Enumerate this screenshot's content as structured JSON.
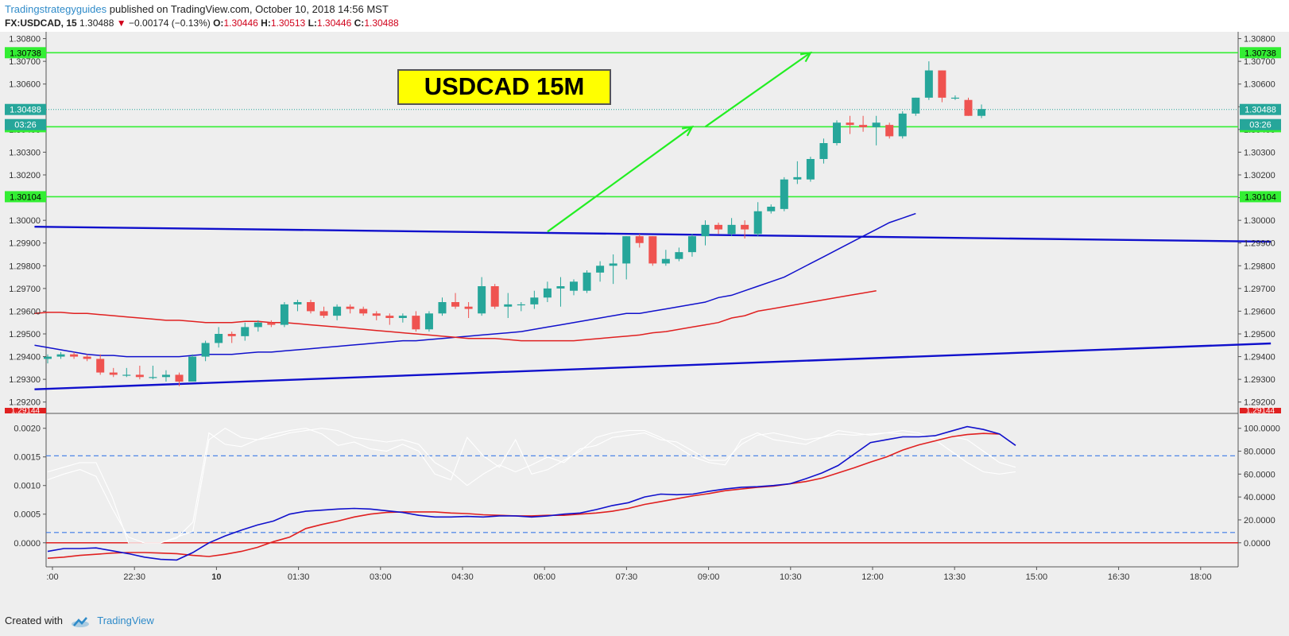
{
  "header": {
    "author": "Tradingstrategyguides",
    "published_text": "published on TradingView.com, October 10, 2018 14:56 MST",
    "symbol": "FX:USDCAD, 15",
    "last": "1.30488",
    "change": "−0.00174 (−0.13%)",
    "o_label": "O:",
    "o_value": "1.30446",
    "h_label": "H:",
    "h_value": "1.30513",
    "l_label": "L:",
    "l_value": "1.30446",
    "c_label": "C:",
    "c_value": "1.30488"
  },
  "annotation": {
    "title": "USDCAD 15M"
  },
  "footer": {
    "created_with": "Created with",
    "brand": "TradingView"
  },
  "colors": {
    "up": "#26a69a",
    "down": "#ef5350",
    "level": "#33ee33",
    "trend": "#1010cc",
    "ema": "#e02020",
    "arrow": "#22ee22",
    "label_bg": "#ffff00"
  },
  "chart_data": [
    {
      "type": "candlestick",
      "price_axis_ticks": [
        "1.30800",
        "1.30700",
        "1.30600",
        "1.30500",
        "1.30400",
        "1.30300",
        "1.30200",
        "1.30100",
        "1.30000",
        "1.29900",
        "1.29800",
        "1.29700",
        "1.29600",
        "1.29500",
        "1.29400",
        "1.29300",
        "1.29200"
      ],
      "ylim": [
        1.2915,
        1.3083
      ],
      "time_axis_ticks": [
        ":00",
        "22:30",
        "10",
        "01:30",
        "03:00",
        "04:30",
        "06:00",
        "07:30",
        "09:00",
        "10:30",
        "12:00",
        "13:30",
        "15:00",
        "16:30",
        "18:00"
      ],
      "price_labels": {
        "levels": [
          "1.30738",
          "1.30412",
          "1.30104"
        ],
        "last_price": "1.30488",
        "countdown": "03:26",
        "low_marker": "1.29144"
      },
      "horizontal_levels": [
        1.30738,
        1.30412,
        1.30104
      ],
      "last_price": 1.30488,
      "candles": [
        {
          "o": 1.2939,
          "h": 1.2941,
          "l": 1.2937,
          "c": 1.294
        },
        {
          "o": 1.294,
          "h": 1.2942,
          "l": 1.2939,
          "c": 1.2941
        },
        {
          "o": 1.2941,
          "h": 1.2942,
          "l": 1.2939,
          "c": 1.294
        },
        {
          "o": 1.294,
          "h": 1.2941,
          "l": 1.2938,
          "c": 1.2939
        },
        {
          "o": 1.2939,
          "h": 1.2941,
          "l": 1.2932,
          "c": 1.2933
        },
        {
          "o": 1.2933,
          "h": 1.2935,
          "l": 1.2931,
          "c": 1.2932
        },
        {
          "o": 1.2932,
          "h": 1.2935,
          "l": 1.2931,
          "c": 1.2932
        },
        {
          "o": 1.2932,
          "h": 1.2936,
          "l": 1.293,
          "c": 1.2931
        },
        {
          "o": 1.2931,
          "h": 1.2936,
          "l": 1.293,
          "c": 1.2931
        },
        {
          "o": 1.2931,
          "h": 1.2934,
          "l": 1.2929,
          "c": 1.2932
        },
        {
          "o": 1.2932,
          "h": 1.2933,
          "l": 1.2927,
          "c": 1.2929
        },
        {
          "o": 1.2929,
          "h": 1.2941,
          "l": 1.2929,
          "c": 1.294
        },
        {
          "o": 1.294,
          "h": 1.2947,
          "l": 1.2938,
          "c": 1.2946
        },
        {
          "o": 1.2946,
          "h": 1.2953,
          "l": 1.2944,
          "c": 1.295
        },
        {
          "o": 1.295,
          "h": 1.2951,
          "l": 1.2946,
          "c": 1.2949
        },
        {
          "o": 1.2949,
          "h": 1.2955,
          "l": 1.2947,
          "c": 1.2953
        },
        {
          "o": 1.2953,
          "h": 1.2956,
          "l": 1.2951,
          "c": 1.2955
        },
        {
          "o": 1.2955,
          "h": 1.2956,
          "l": 1.2953,
          "c": 1.2954
        },
        {
          "o": 1.2954,
          "h": 1.2964,
          "l": 1.2953,
          "c": 1.2963
        },
        {
          "o": 1.2963,
          "h": 1.2965,
          "l": 1.296,
          "c": 1.2964
        },
        {
          "o": 1.2964,
          "h": 1.2965,
          "l": 1.2959,
          "c": 1.296
        },
        {
          "o": 1.296,
          "h": 1.2962,
          "l": 1.2957,
          "c": 1.2958
        },
        {
          "o": 1.2958,
          "h": 1.2963,
          "l": 1.2956,
          "c": 1.2962
        },
        {
          "o": 1.2962,
          "h": 1.2963,
          "l": 1.2959,
          "c": 1.2961
        },
        {
          "o": 1.2961,
          "h": 1.2962,
          "l": 1.2958,
          "c": 1.2959
        },
        {
          "o": 1.2959,
          "h": 1.296,
          "l": 1.2956,
          "c": 1.2958
        },
        {
          "o": 1.2958,
          "h": 1.2959,
          "l": 1.2954,
          "c": 1.2957
        },
        {
          "o": 1.2957,
          "h": 1.2959,
          "l": 1.2955,
          "c": 1.2958
        },
        {
          "o": 1.2958,
          "h": 1.296,
          "l": 1.2951,
          "c": 1.2952
        },
        {
          "o": 1.2952,
          "h": 1.296,
          "l": 1.2951,
          "c": 1.2959
        },
        {
          "o": 1.2959,
          "h": 1.2966,
          "l": 1.2958,
          "c": 1.2964
        },
        {
          "o": 1.2964,
          "h": 1.2968,
          "l": 1.2961,
          "c": 1.2962
        },
        {
          "o": 1.2962,
          "h": 1.2964,
          "l": 1.2957,
          "c": 1.2961
        },
        {
          "o": 1.2959,
          "h": 1.2975,
          "l": 1.2958,
          "c": 1.2971
        },
        {
          "o": 1.2971,
          "h": 1.2972,
          "l": 1.2961,
          "c": 1.2962
        },
        {
          "o": 1.2962,
          "h": 1.2968,
          "l": 1.2957,
          "c": 1.2963
        },
        {
          "o": 1.2963,
          "h": 1.2964,
          "l": 1.296,
          "c": 1.2963
        },
        {
          "o": 1.2963,
          "h": 1.2969,
          "l": 1.2961,
          "c": 1.2966
        },
        {
          "o": 1.2966,
          "h": 1.2973,
          "l": 1.2964,
          "c": 1.297
        },
        {
          "o": 1.297,
          "h": 1.2975,
          "l": 1.2962,
          "c": 1.2971
        },
        {
          "o": 1.2969,
          "h": 1.2974,
          "l": 1.2967,
          "c": 1.2973
        },
        {
          "o": 1.2969,
          "h": 1.2978,
          "l": 1.2968,
          "c": 1.2977
        },
        {
          "o": 1.2977,
          "h": 1.2982,
          "l": 1.2973,
          "c": 1.298
        },
        {
          "o": 1.298,
          "h": 1.2985,
          "l": 1.2972,
          "c": 1.2981
        },
        {
          "o": 1.2981,
          "h": 1.2993,
          "l": 1.2974,
          "c": 1.2993
        },
        {
          "o": 1.2993,
          "h": 1.2994,
          "l": 1.2988,
          "c": 1.299
        },
        {
          "o": 1.2993,
          "h": 1.2993,
          "l": 1.298,
          "c": 1.2981
        },
        {
          "o": 1.2981,
          "h": 1.2987,
          "l": 1.298,
          "c": 1.2983
        },
        {
          "o": 1.2983,
          "h": 1.2988,
          "l": 1.2982,
          "c": 1.2986
        },
        {
          "o": 1.2986,
          "h": 1.2994,
          "l": 1.2984,
          "c": 1.2993
        },
        {
          "o": 1.2993,
          "h": 1.3,
          "l": 1.2989,
          "c": 1.2998
        },
        {
          "o": 1.2998,
          "h": 1.2999,
          "l": 1.2994,
          "c": 1.2996
        },
        {
          "o": 1.2994,
          "h": 1.3001,
          "l": 1.2993,
          "c": 1.2998
        },
        {
          "o": 1.2998,
          "h": 1.3,
          "l": 1.2992,
          "c": 1.2996
        },
        {
          "o": 1.2994,
          "h": 1.3008,
          "l": 1.2993,
          "c": 1.3004
        },
        {
          "o": 1.3004,
          "h": 1.3007,
          "l": 1.3003,
          "c": 1.3006
        },
        {
          "o": 1.3005,
          "h": 1.3019,
          "l": 1.3004,
          "c": 1.3018
        },
        {
          "o": 1.3018,
          "h": 1.3026,
          "l": 1.3016,
          "c": 1.3019
        },
        {
          "o": 1.3018,
          "h": 1.3028,
          "l": 1.3017,
          "c": 1.3027
        },
        {
          "o": 1.3027,
          "h": 1.3036,
          "l": 1.3025,
          "c": 1.3034
        },
        {
          "o": 1.3034,
          "h": 1.3044,
          "l": 1.3033,
          "c": 1.3043
        },
        {
          "o": 1.3043,
          "h": 1.3046,
          "l": 1.3038,
          "c": 1.3042
        },
        {
          "o": 1.3042,
          "h": 1.3046,
          "l": 1.3039,
          "c": 1.3041
        },
        {
          "o": 1.3041,
          "h": 1.3046,
          "l": 1.3033,
          "c": 1.3043
        },
        {
          "o": 1.3042,
          "h": 1.3043,
          "l": 1.3036,
          "c": 1.3037
        },
        {
          "o": 1.3037,
          "h": 1.3048,
          "l": 1.3036,
          "c": 1.3047
        },
        {
          "o": 1.3047,
          "h": 1.3054,
          "l": 1.3046,
          "c": 1.3054
        },
        {
          "o": 1.3054,
          "h": 1.307,
          "l": 1.3053,
          "c": 1.3066
        },
        {
          "o": 1.3066,
          "h": 1.3066,
          "l": 1.3052,
          "c": 1.3054
        },
        {
          "o": 1.3054,
          "h": 1.3055,
          "l": 1.3053,
          "c": 1.3054
        },
        {
          "o": 1.3053,
          "h": 1.3054,
          "l": 1.3046,
          "c": 1.3046
        },
        {
          "o": 1.3046,
          "h": 1.3051,
          "l": 1.3045,
          "c": 1.3049
        }
      ],
      "trend_lines": [
        {
          "from": {
            "bar": -1,
            "price": 1.29972
          },
          "to": {
            "bar": 93,
            "price": 1.29906
          }
        },
        {
          "from": {
            "bar": -1,
            "price": 1.29256
          },
          "to": {
            "bar": 93,
            "price": 1.29458
          }
        }
      ],
      "ema_fast": [
        1.2945,
        1.2944,
        1.2943,
        1.2942,
        1.2941,
        1.29405,
        1.29405,
        1.294,
        1.294,
        1.294,
        1.294,
        1.294,
        1.29405,
        1.2941,
        1.2941,
        1.2941,
        1.29415,
        1.2942,
        1.2942,
        1.29425,
        1.2943,
        1.29435,
        1.2944,
        1.29445,
        1.2945,
        1.29455,
        1.2946,
        1.29465,
        1.2947,
        1.2947,
        1.29475,
        1.2948,
        1.29485,
        1.2949,
        1.29495,
        1.295,
        1.29505,
        1.2951,
        1.2952,
        1.2953,
        1.2954,
        1.2955,
        1.2956,
        1.2957,
        1.2958,
        1.2959,
        1.2959,
        1.296,
        1.2961,
        1.2962,
        1.2963,
        1.2964,
        1.2966,
        1.2967,
        1.2969,
        1.2971,
        1.2973,
        1.2975,
        1.2978,
        1.2981,
        1.2984,
        1.2987,
        1.299,
        1.2993,
        1.2996,
        1.2999,
        1.3001,
        1.3003
      ],
      "ema_slow": [
        1.2959,
        1.29595,
        1.29595,
        1.2959,
        1.2959,
        1.29585,
        1.2958,
        1.29575,
        1.2957,
        1.29565,
        1.2956,
        1.2956,
        1.29555,
        1.2955,
        1.2955,
        1.2955,
        1.29555,
        1.29555,
        1.2955,
        1.2955,
        1.29545,
        1.2954,
        1.29535,
        1.2953,
        1.29525,
        1.2952,
        1.29515,
        1.2951,
        1.29505,
        1.295,
        1.29495,
        1.2949,
        1.29485,
        1.2948,
        1.2948,
        1.2948,
        1.29475,
        1.2947,
        1.2947,
        1.2947,
        1.2947,
        1.2947,
        1.29475,
        1.2948,
        1.29485,
        1.2949,
        1.29495,
        1.29505,
        1.2951,
        1.2952,
        1.2953,
        1.2954,
        1.2955,
        1.2957,
        1.2958,
        1.296,
        1.2961,
        1.2962,
        1.2963,
        1.2964,
        1.2965,
        1.2966,
        1.2967,
        1.2968,
        1.2969
      ],
      "arrows": [
        {
          "from": {
            "bar": 38,
            "price": 1.2995
          },
          "to": {
            "bar": 49,
            "price": 1.30412
          }
        },
        {
          "from": {
            "bar": 50,
            "price": 1.30412
          },
          "to": {
            "bar": 58,
            "price": 1.30738
          }
        }
      ]
    },
    {
      "type": "line",
      "left_axis_ticks": [
        "0.0020",
        "0.0015",
        "0.0010",
        "0.0005",
        "0.0000"
      ],
      "right_axis_ticks": [
        "100.0000",
        "80.0000",
        "60.0000",
        "40.0000",
        "20.0000",
        "0.0000"
      ],
      "ylim": [
        -0.00042,
        0.00226
      ],
      "dashed_levels": [
        0.00152,
        0.00018
      ],
      "zero_line": 0,
      "series": [
        {
          "values": [
            -0.00015,
            -0.0001,
            -0.0001,
            -9e-05,
            -0.00014,
            -0.00019,
            -0.00025,
            -0.00029,
            -0.0003,
            -0.00017,
            0.0,
            0.00012,
            0.00022,
            0.00031,
            0.00038,
            0.0005,
            0.00055,
            0.00057,
            0.00059,
            0.0006,
            0.00059,
            0.00056,
            0.00053,
            0.00048,
            0.00045,
            0.00045,
            0.00046,
            0.00045,
            0.00047,
            0.00047,
            0.00045,
            0.00047,
            0.0005,
            0.00052,
            0.00058,
            0.00065,
            0.0007,
            0.0008,
            0.00085,
            0.00084,
            0.00085,
            0.0009,
            0.00094,
            0.00097,
            0.00098,
            0.001,
            0.00103,
            0.00112,
            0.00122,
            0.00135,
            0.00155,
            0.00175,
            0.0018,
            0.00185,
            0.00185,
            0.00187,
            0.00195,
            0.00203,
            0.00198,
            0.0019,
            0.0017
          ]
        },
        {
          "values": [
            -0.00027,
            -0.00025,
            -0.00022,
            -0.0002,
            -0.00018,
            -0.00017,
            -0.00017,
            -0.00018,
            -0.00019,
            -0.00022,
            -0.00024,
            -0.0002,
            -0.00015,
            -8e-05,
            2e-05,
            0.0001,
            0.00025,
            0.00032,
            0.00038,
            0.00045,
            0.0005,
            0.00053,
            0.00054,
            0.00054,
            0.00054,
            0.00052,
            0.00051,
            0.00049,
            0.00048,
            0.00047,
            0.00047,
            0.00048,
            0.00048,
            0.0005,
            0.00052,
            0.00055,
            0.0006,
            0.00067,
            0.00072,
            0.00077,
            0.00082,
            0.00086,
            0.00091,
            0.00094,
            0.00097,
            0.00099,
            0.00103,
            0.00107,
            0.00113,
            0.00122,
            0.00131,
            0.00141,
            0.0015,
            0.00162,
            0.00171,
            0.00178,
            0.00185,
            0.00189,
            0.00191,
            0.0019
          ]
        },
        {
          "values": [
            62,
            66,
            70,
            70,
            40,
            0,
            0,
            0,
            5,
            10,
            90,
            100,
            92,
            90,
            92,
            96,
            98,
            100,
            98,
            92,
            90,
            88,
            90,
            86,
            70,
            62,
            50,
            60,
            68,
            62,
            68,
            75,
            70,
            82,
            85,
            92,
            94,
            96,
            90,
            88,
            80,
            72,
            72,
            86,
            94,
            96,
            93,
            90,
            92,
            95,
            94,
            95,
            96,
            95,
            94,
            92,
            93,
            90,
            80,
            70,
            66
          ]
        },
        {
          "values": [
            55,
            60,
            64,
            58,
            30,
            5,
            0,
            0,
            4,
            18,
            96,
            86,
            84,
            90,
            95,
            98,
            100,
            95,
            85,
            88,
            82,
            80,
            86,
            80,
            60,
            55,
            92,
            76,
            66,
            90,
            60,
            64,
            72,
            80,
            92,
            96,
            98,
            98,
            92,
            84,
            75,
            70,
            68,
            90,
            96,
            90,
            88,
            86,
            92,
            98,
            96,
            94,
            96,
            98,
            96,
            90,
            80,
            70,
            62,
            60,
            62
          ]
        }
      ]
    }
  ]
}
